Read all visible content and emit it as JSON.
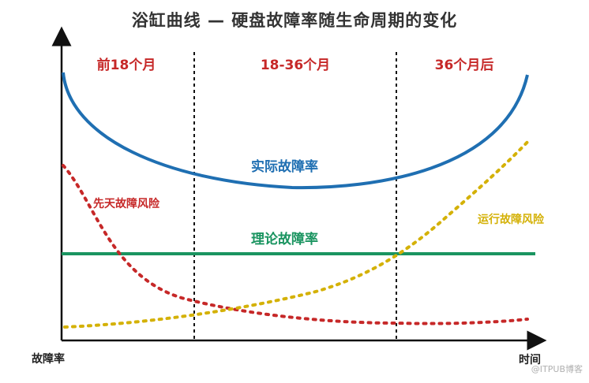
{
  "title": "浴缸曲线 — 硬盘故障率随生命周期的变化",
  "periods": [
    "前18个月",
    "18-36个月",
    "36个月后"
  ],
  "curves": {
    "actual": {
      "label": "实际故障率",
      "color": "#1f6fb2"
    },
    "theoretical": {
      "label": "理论故障率",
      "color": "#1a9460"
    },
    "infant": {
      "label": "先天故障风险",
      "color": "#c62828"
    },
    "wearout": {
      "label": "运行故障风险",
      "color": "#d4b106"
    }
  },
  "axes": {
    "y_label": "故障率",
    "x_label": "时间"
  },
  "watermark": "@ITPUB博客"
}
